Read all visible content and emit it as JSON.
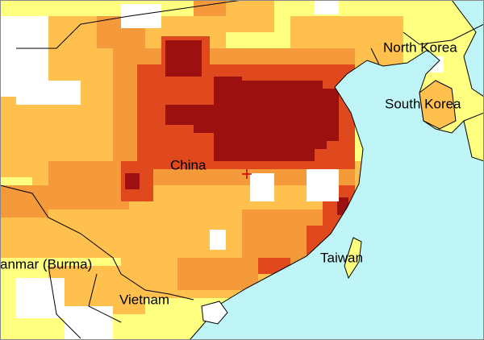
{
  "map": {
    "labels": [
      "North Korea",
      "South Korea",
      "China",
      "Taiwan",
      "anmar (Burma)",
      "Vietnam"
    ]
  }
}
